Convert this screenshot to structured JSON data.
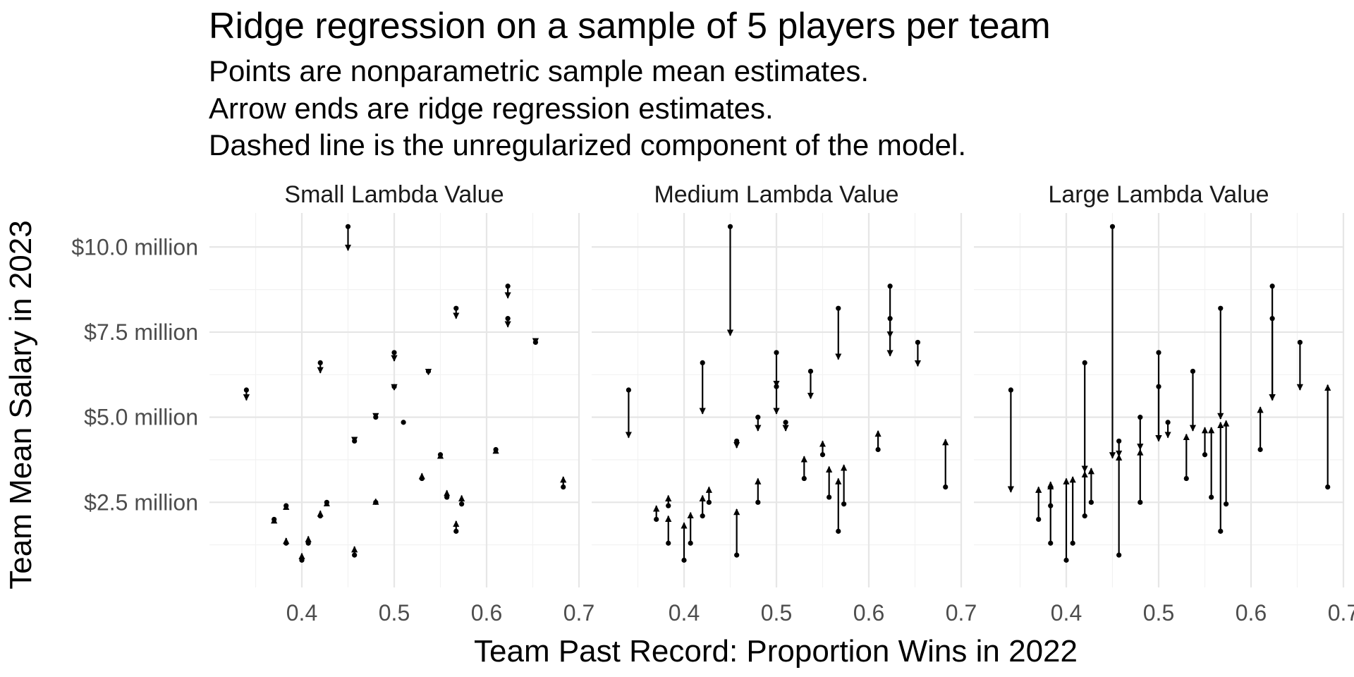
{
  "chart_data": {
    "type": "scatter",
    "title": "Ridge regression on a sample of 5 players per team",
    "subtitle_lines": [
      "Points are nonparametric sample mean estimates.",
      "Arrow ends are ridge regression estimates.",
      "Dashed line is the unregularized component of the model."
    ],
    "xlabel": "Team Past Record: Proportion Wins in 2022",
    "ylabel": "Team Mean Salary in 2023",
    "xlim": [
      0.3,
      0.7
    ],
    "ylim": [
      0.0,
      11.0
    ],
    "x_ticks": [
      0.4,
      0.5,
      0.6,
      0.7
    ],
    "x_tick_labels": [
      "0.4",
      "0.5",
      "0.6",
      "0.7"
    ],
    "y_ticks": [
      2.5,
      5.0,
      7.5,
      10.0
    ],
    "y_tick_labels": [
      "$2.5 million",
      "$5.0 million",
      "$7.5 million",
      "$10.0 million"
    ],
    "grid": true,
    "panels": [
      {
        "label": "Small Lambda Value",
        "points": [
          {
            "x": 0.34,
            "y": 5.8,
            "ridge": 5.5
          },
          {
            "x": 0.37,
            "y": 2.0,
            "ridge": 2.05
          },
          {
            "x": 0.383,
            "y": 2.4,
            "ridge": 2.45
          },
          {
            "x": 0.383,
            "y": 1.3,
            "ridge": 1.45
          },
          {
            "x": 0.4,
            "y": 0.8,
            "ridge": 1.0
          },
          {
            "x": 0.407,
            "y": 1.3,
            "ridge": 1.5
          },
          {
            "x": 0.42,
            "y": 6.6,
            "ridge": 6.3
          },
          {
            "x": 0.42,
            "y": 2.1,
            "ridge": 2.25
          },
          {
            "x": 0.427,
            "y": 2.5,
            "ridge": 2.55
          },
          {
            "x": 0.45,
            "y": 10.6,
            "ridge": 9.9
          },
          {
            "x": 0.457,
            "y": 4.3,
            "ridge": 4.25
          },
          {
            "x": 0.457,
            "y": 0.95,
            "ridge": 1.2
          },
          {
            "x": 0.48,
            "y": 5.0,
            "ridge": 4.95
          },
          {
            "x": 0.48,
            "y": 2.5,
            "ridge": 2.6
          },
          {
            "x": 0.5,
            "y": 6.9,
            "ridge": 6.65
          },
          {
            "x": 0.5,
            "y": 5.9,
            "ridge": 5.8
          },
          {
            "x": 0.51,
            "y": 4.85,
            "ridge": 4.85
          },
          {
            "x": 0.53,
            "y": 3.2,
            "ridge": 3.35
          },
          {
            "x": 0.537,
            "y": 6.35,
            "ridge": 6.25
          },
          {
            "x": 0.55,
            "y": 3.9,
            "ridge": 3.95
          },
          {
            "x": 0.557,
            "y": 2.65,
            "ridge": 2.85
          },
          {
            "x": 0.567,
            "y": 8.2,
            "ridge": 7.9
          },
          {
            "x": 0.567,
            "y": 1.65,
            "ridge": 1.95
          },
          {
            "x": 0.573,
            "y": 2.45,
            "ridge": 2.7
          },
          {
            "x": 0.61,
            "y": 4.05,
            "ridge": 4.1
          },
          {
            "x": 0.623,
            "y": 8.85,
            "ridge": 8.5
          },
          {
            "x": 0.623,
            "y": 7.9,
            "ridge": 7.65
          },
          {
            "x": 0.653,
            "y": 7.2,
            "ridge": 7.15
          },
          {
            "x": 0.683,
            "y": 2.95,
            "ridge": 3.25
          }
        ]
      },
      {
        "label": "Medium Lambda Value",
        "points": [
          {
            "x": 0.34,
            "y": 5.8,
            "ridge": 4.4
          },
          {
            "x": 0.37,
            "y": 2.0,
            "ridge": 2.4
          },
          {
            "x": 0.383,
            "y": 2.4,
            "ridge": 2.7
          },
          {
            "x": 0.383,
            "y": 1.3,
            "ridge": 2.1
          },
          {
            "x": 0.4,
            "y": 0.8,
            "ridge": 1.9
          },
          {
            "x": 0.407,
            "y": 1.3,
            "ridge": 2.2
          },
          {
            "x": 0.42,
            "y": 6.6,
            "ridge": 5.1
          },
          {
            "x": 0.42,
            "y": 2.1,
            "ridge": 2.7
          },
          {
            "x": 0.427,
            "y": 2.5,
            "ridge": 2.95
          },
          {
            "x": 0.45,
            "y": 10.6,
            "ridge": 7.4
          },
          {
            "x": 0.457,
            "y": 4.3,
            "ridge": 4.1
          },
          {
            "x": 0.457,
            "y": 0.95,
            "ridge": 2.3
          },
          {
            "x": 0.48,
            "y": 5.0,
            "ridge": 4.6
          },
          {
            "x": 0.48,
            "y": 2.5,
            "ridge": 3.2
          },
          {
            "x": 0.5,
            "y": 6.9,
            "ridge": 5.9
          },
          {
            "x": 0.5,
            "y": 5.9,
            "ridge": 5.1
          },
          {
            "x": 0.51,
            "y": 4.85,
            "ridge": 4.6
          },
          {
            "x": 0.53,
            "y": 3.2,
            "ridge": 3.85
          },
          {
            "x": 0.537,
            "y": 6.35,
            "ridge": 5.55
          },
          {
            "x": 0.55,
            "y": 3.9,
            "ridge": 4.3
          },
          {
            "x": 0.557,
            "y": 2.65,
            "ridge": 3.55
          },
          {
            "x": 0.567,
            "y": 8.2,
            "ridge": 6.7
          },
          {
            "x": 0.567,
            "y": 1.65,
            "ridge": 3.2
          },
          {
            "x": 0.573,
            "y": 2.45,
            "ridge": 3.6
          },
          {
            "x": 0.61,
            "y": 4.05,
            "ridge": 4.6
          },
          {
            "x": 0.623,
            "y": 8.85,
            "ridge": 7.35
          },
          {
            "x": 0.623,
            "y": 7.9,
            "ridge": 6.8
          },
          {
            "x": 0.653,
            "y": 7.2,
            "ridge": 6.5
          },
          {
            "x": 0.683,
            "y": 2.95,
            "ridge": 4.35
          }
        ]
      },
      {
        "label": "Large Lambda Value",
        "points": [
          {
            "x": 0.34,
            "y": 5.8,
            "ridge": 2.8
          },
          {
            "x": 0.37,
            "y": 2.0,
            "ridge": 2.95
          },
          {
            "x": 0.383,
            "y": 2.4,
            "ridge": 3.1
          },
          {
            "x": 0.383,
            "y": 1.3,
            "ridge": 3.05
          },
          {
            "x": 0.4,
            "y": 0.8,
            "ridge": 3.2
          },
          {
            "x": 0.407,
            "y": 1.3,
            "ridge": 3.25
          },
          {
            "x": 0.42,
            "y": 6.6,
            "ridge": 3.4
          },
          {
            "x": 0.42,
            "y": 2.1,
            "ridge": 3.4
          },
          {
            "x": 0.427,
            "y": 2.5,
            "ridge": 3.5
          },
          {
            "x": 0.45,
            "y": 10.6,
            "ridge": 3.8
          },
          {
            "x": 0.457,
            "y": 4.3,
            "ridge": 3.85
          },
          {
            "x": 0.457,
            "y": 0.95,
            "ridge": 3.9
          },
          {
            "x": 0.48,
            "y": 5.0,
            "ridge": 4.05
          },
          {
            "x": 0.48,
            "y": 2.5,
            "ridge": 4.05
          },
          {
            "x": 0.5,
            "y": 6.9,
            "ridge": 4.3
          },
          {
            "x": 0.5,
            "y": 5.9,
            "ridge": 4.3
          },
          {
            "x": 0.51,
            "y": 4.85,
            "ridge": 4.4
          },
          {
            "x": 0.53,
            "y": 3.2,
            "ridge": 4.5
          },
          {
            "x": 0.537,
            "y": 6.35,
            "ridge": 4.6
          },
          {
            "x": 0.55,
            "y": 3.9,
            "ridge": 4.7
          },
          {
            "x": 0.557,
            "y": 2.65,
            "ridge": 4.7
          },
          {
            "x": 0.567,
            "y": 8.2,
            "ridge": 4.95
          },
          {
            "x": 0.567,
            "y": 1.65,
            "ridge": 4.85
          },
          {
            "x": 0.573,
            "y": 2.45,
            "ridge": 4.9
          },
          {
            "x": 0.61,
            "y": 4.05,
            "ridge": 5.3
          },
          {
            "x": 0.623,
            "y": 8.85,
            "ridge": 5.5
          },
          {
            "x": 0.623,
            "y": 7.9,
            "ridge": 5.5
          },
          {
            "x": 0.653,
            "y": 7.2,
            "ridge": 5.8
          },
          {
            "x": 0.683,
            "y": 2.95,
            "ridge": 5.95
          }
        ]
      }
    ]
  }
}
